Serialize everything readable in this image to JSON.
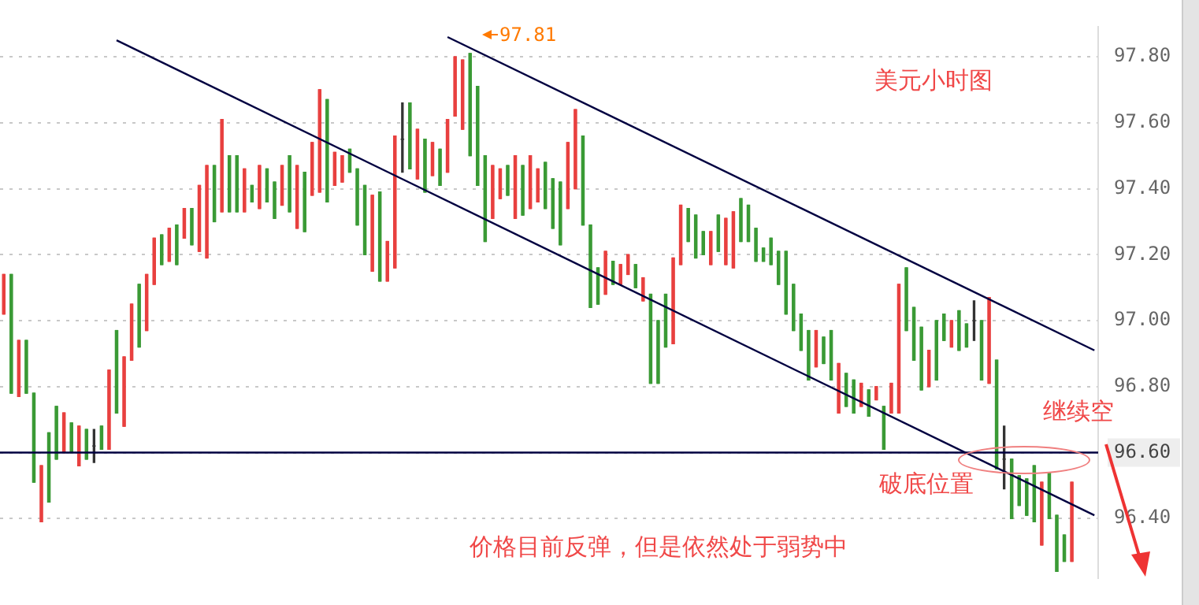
{
  "chart_data": {
    "type": "candlestick",
    "categories": [
      null,
      null,
      null,
      null,
      null,
      null,
      null,
      null,
      null,
      null,
      null,
      null,
      null,
      null,
      null,
      null,
      null,
      null,
      null,
      null,
      null,
      null,
      null,
      null,
      null,
      null,
      null,
      null,
      null,
      null,
      null,
      null,
      null,
      null,
      null,
      null,
      null,
      null,
      null,
      null,
      null,
      null,
      null,
      null,
      null,
      null,
      null,
      null,
      null,
      null,
      null,
      null,
      null,
      null,
      null,
      null,
      null,
      null,
      null,
      null,
      null,
      null,
      null,
      null,
      null,
      null,
      null,
      null,
      null,
      null,
      null,
      null,
      null,
      null,
      null,
      null,
      null,
      null,
      null,
      null,
      null,
      null,
      null,
      null,
      null,
      null,
      null,
      null,
      null,
      null,
      null,
      null,
      null,
      null,
      null,
      null,
      null,
      null,
      null,
      null,
      null,
      null,
      null,
      null,
      null,
      null,
      null,
      null,
      null,
      null,
      null,
      null,
      null,
      null,
      null,
      null,
      null,
      null,
      null,
      null,
      null,
      null,
      null,
      null,
      null,
      null,
      null,
      null,
      null,
      null,
      null,
      null,
      null,
      null,
      null,
      null,
      null,
      null,
      null,
      null,
      null,
      null,
      null,
      null,
      null,
      null
    ],
    "ohlc": [
      [
        97.02,
        97.14,
        97.02,
        97.14
      ],
      [
        97.14,
        97.14,
        96.78,
        96.78
      ],
      [
        96.77,
        96.94,
        96.77,
        96.94
      ],
      [
        96.94,
        96.94,
        96.78,
        96.78
      ],
      [
        96.78,
        96.78,
        96.51,
        96.51
      ],
      [
        96.39,
        96.56,
        96.39,
        96.56
      ],
      [
        96.66,
        96.66,
        96.45,
        96.45
      ],
      [
        96.74,
        96.74,
        96.58,
        96.58
      ],
      [
        96.6,
        96.72,
        96.6,
        96.72
      ],
      [
        96.69,
        96.69,
        96.6,
        96.6
      ],
      [
        96.56,
        96.68,
        96.56,
        96.68
      ],
      [
        96.67,
        96.67,
        96.58,
        96.58
      ],
      [
        96.62,
        96.67,
        96.57,
        96.62
      ],
      [
        96.68,
        96.68,
        96.61,
        96.61
      ],
      [
        96.61,
        96.85,
        96.61,
        96.85
      ],
      [
        96.97,
        96.97,
        96.72,
        96.72
      ],
      [
        96.68,
        96.89,
        96.68,
        96.89
      ],
      [
        96.88,
        97.05,
        96.88,
        97.05
      ],
      [
        97.11,
        97.11,
        96.92,
        96.92
      ],
      [
        96.97,
        97.14,
        96.97,
        97.14
      ],
      [
        97.11,
        97.25,
        97.11,
        97.25
      ],
      [
        97.26,
        97.26,
        97.17,
        97.17
      ],
      [
        97.18,
        97.28,
        97.18,
        97.28
      ],
      [
        97.29,
        97.29,
        97.17,
        97.17
      ],
      [
        97.25,
        97.34,
        97.25,
        97.34
      ],
      [
        97.34,
        97.34,
        97.23,
        97.23
      ],
      [
        97.21,
        97.41,
        97.21,
        97.41
      ],
      [
        97.19,
        97.47,
        97.19,
        97.47
      ],
      [
        97.47,
        97.47,
        97.3,
        97.3
      ],
      [
        97.33,
        97.61,
        97.33,
        97.61
      ],
      [
        97.5,
        97.5,
        97.33,
        97.33
      ],
      [
        97.5,
        97.5,
        97.33,
        97.33
      ],
      [
        97.33,
        97.46,
        97.33,
        97.46
      ],
      [
        97.41,
        97.41,
        97.36,
        97.36
      ],
      [
        97.34,
        97.47,
        97.34,
        97.47
      ],
      [
        97.46,
        97.46,
        97.36,
        97.36
      ],
      [
        97.42,
        97.42,
        97.31,
        97.31
      ],
      [
        97.35,
        97.47,
        97.35,
        97.47
      ],
      [
        97.5,
        97.5,
        97.33,
        97.33
      ],
      [
        97.28,
        97.47,
        97.28,
        97.47
      ],
      [
        97.45,
        97.45,
        97.27,
        97.27
      ],
      [
        97.38,
        97.54,
        97.38,
        97.54
      ],
      [
        97.39,
        97.7,
        97.39,
        97.7
      ],
      [
        97.67,
        97.67,
        97.36,
        97.36
      ],
      [
        97.41,
        97.51,
        97.41,
        97.51
      ],
      [
        97.42,
        97.5,
        97.42,
        97.5
      ],
      [
        97.52,
        97.52,
        97.45,
        97.45
      ],
      [
        97.46,
        97.46,
        97.29,
        97.29
      ],
      [
        97.41,
        97.41,
        97.2,
        97.2
      ],
      [
        97.15,
        97.38,
        97.15,
        97.38
      ],
      [
        97.39,
        97.39,
        97.12,
        97.12
      ],
      [
        97.12,
        97.24,
        97.12,
        97.24
      ],
      [
        97.16,
        97.56,
        97.16,
        97.56
      ],
      [
        97.55,
        97.66,
        97.45,
        97.55
      ],
      [
        97.66,
        97.66,
        97.46,
        97.46
      ],
      [
        97.43,
        97.58,
        97.43,
        97.58
      ],
      [
        97.55,
        97.55,
        97.39,
        97.39
      ],
      [
        97.44,
        97.54,
        97.44,
        97.54
      ],
      [
        97.52,
        97.52,
        97.41,
        97.41
      ],
      [
        97.45,
        97.61,
        97.45,
        97.61
      ],
      [
        97.62,
        97.8,
        97.62,
        97.8
      ],
      [
        97.58,
        97.79,
        97.58,
        97.79
      ],
      [
        97.81,
        97.81,
        97.5,
        97.5
      ],
      [
        97.71,
        97.71,
        97.41,
        97.41
      ],
      [
        97.5,
        97.5,
        97.24,
        97.24
      ],
      [
        97.31,
        97.47,
        97.31,
        97.47
      ],
      [
        97.37,
        97.46,
        97.37,
        97.46
      ],
      [
        97.47,
        97.47,
        97.38,
        97.38
      ],
      [
        97.31,
        97.5,
        97.31,
        97.5
      ],
      [
        97.47,
        97.47,
        97.32,
        97.32
      ],
      [
        97.34,
        97.5,
        97.34,
        97.5
      ],
      [
        97.36,
        97.46,
        97.36,
        97.46
      ],
      [
        97.48,
        97.48,
        97.34,
        97.34
      ],
      [
        97.43,
        97.43,
        97.28,
        97.28
      ],
      [
        97.42,
        97.42,
        97.23,
        97.23
      ],
      [
        97.34,
        97.54,
        97.34,
        97.54
      ],
      [
        97.4,
        97.64,
        97.4,
        97.64
      ],
      [
        97.56,
        97.56,
        97.29,
        97.29
      ],
      [
        97.29,
        97.29,
        97.04,
        97.04
      ],
      [
        97.16,
        97.16,
        97.05,
        97.05
      ],
      [
        97.08,
        97.21,
        97.08,
        97.21
      ],
      [
        97.18,
        97.18,
        97.11,
        97.11
      ],
      [
        97.11,
        97.17,
        97.11,
        97.17
      ],
      [
        97.14,
        97.2,
        97.14,
        97.2
      ],
      [
        97.17,
        97.17,
        97.1,
        97.1
      ],
      [
        97.06,
        97.13,
        97.06,
        97.13
      ],
      [
        97.08,
        97.08,
        96.81,
        96.81
      ],
      [
        97.0,
        97.0,
        96.81,
        96.81
      ],
      [
        97.08,
        97.08,
        96.92,
        96.92
      ],
      [
        96.93,
        97.19,
        96.93,
        97.19
      ],
      [
        97.17,
        97.35,
        97.17,
        97.35
      ],
      [
        97.34,
        97.34,
        97.24,
        97.24
      ],
      [
        97.32,
        97.32,
        97.19,
        97.19
      ],
      [
        97.27,
        97.27,
        97.2,
        97.2
      ],
      [
        97.17,
        97.27,
        97.17,
        97.27
      ],
      [
        97.32,
        97.32,
        97.21,
        97.21
      ],
      [
        97.17,
        97.31,
        97.17,
        97.31
      ],
      [
        97.16,
        97.33,
        97.16,
        97.33
      ],
      [
        97.37,
        97.37,
        97.24,
        97.24
      ],
      [
        97.35,
        97.35,
        97.24,
        97.24
      ],
      [
        97.28,
        97.28,
        97.18,
        97.18
      ],
      [
        97.22,
        97.22,
        97.18,
        97.18
      ],
      [
        97.25,
        97.25,
        97.17,
        97.17
      ],
      [
        97.21,
        97.21,
        97.11,
        97.11
      ],
      [
        97.21,
        97.21,
        97.02,
        97.02
      ],
      [
        97.11,
        97.11,
        96.97,
        96.97
      ],
      [
        97.02,
        97.02,
        96.91,
        96.91
      ],
      [
        96.97,
        96.97,
        96.82,
        96.82
      ],
      [
        96.86,
        96.97,
        96.86,
        96.97
      ],
      [
        96.95,
        96.95,
        96.87,
        96.87
      ],
      [
        96.97,
        96.97,
        96.82,
        96.82
      ],
      [
        96.72,
        96.87,
        96.72,
        96.87
      ],
      [
        96.84,
        96.84,
        96.74,
        96.74
      ],
      [
        96.82,
        96.82,
        96.72,
        96.72
      ],
      [
        96.74,
        96.81,
        96.74,
        96.81
      ],
      [
        96.79,
        96.79,
        96.71,
        96.71
      ],
      [
        96.76,
        96.8,
        96.76,
        96.8
      ],
      [
        96.74,
        96.74,
        96.61,
        96.61
      ],
      [
        96.72,
        96.81,
        96.72,
        96.81
      ],
      [
        96.72,
        97.11,
        96.72,
        97.11
      ],
      [
        97.16,
        97.16,
        96.97,
        96.97
      ],
      [
        97.04,
        97.04,
        96.88,
        96.88
      ],
      [
        96.98,
        96.98,
        96.79,
        96.79
      ],
      [
        96.8,
        96.91,
        96.8,
        96.91
      ],
      [
        97.0,
        97.0,
        96.82,
        96.82
      ],
      [
        97.02,
        97.02,
        96.94,
        96.94
      ],
      [
        96.92,
        97.0,
        96.92,
        97.0
      ],
      [
        97.03,
        97.03,
        96.91,
        96.91
      ],
      [
        96.99,
        96.99,
        96.92,
        96.92
      ],
      [
        97.0,
        97.06,
        96.94,
        97.0
      ],
      [
        97.0,
        97.0,
        96.82,
        96.82
      ],
      [
        96.81,
        97.07,
        96.81,
        97.07
      ],
      [
        96.88,
        96.88,
        96.55,
        96.55
      ],
      [
        96.58,
        96.68,
        96.49,
        96.58
      ],
      [
        96.58,
        96.58,
        96.4,
        96.4
      ],
      [
        96.53,
        96.53,
        96.44,
        96.44
      ],
      [
        96.52,
        96.52,
        96.41,
        96.41
      ],
      [
        96.56,
        96.56,
        96.39,
        96.39
      ],
      [
        96.32,
        96.51,
        96.32,
        96.51
      ],
      [
        96.54,
        96.54,
        96.4,
        96.4
      ],
      [
        96.41,
        96.41,
        96.24,
        96.24
      ],
      [
        96.35,
        96.35,
        96.27,
        96.27
      ],
      [
        96.27,
        96.51,
        96.27,
        96.51
      ],
      null,
      null,
      null
    ],
    "series": [
      {
        "type": "line",
        "color": "#000040",
        "values": [
          null,
          null,
          null,
          null,
          null,
          null,
          null,
          null,
          null,
          null,
          null,
          null,
          null,
          null,
          null,
          97.85,
          null,
          null,
          null,
          null,
          null,
          null,
          null,
          null,
          null,
          null,
          null,
          null,
          null,
          null,
          null,
          null,
          null,
          null,
          null,
          null,
          null,
          null,
          null,
          null,
          null,
          null,
          null,
          null,
          null,
          null,
          null,
          null,
          null,
          null,
          null,
          null,
          null,
          null,
          null,
          null,
          null,
          null,
          null,
          null,
          null,
          null,
          null,
          null,
          null,
          null,
          null,
          null,
          null,
          null,
          null,
          null,
          null,
          null,
          null,
          null,
          null,
          null,
          null,
          null,
          null,
          null,
          null,
          null,
          null,
          null,
          null,
          null,
          null,
          null,
          null,
          null,
          null,
          null,
          null,
          null,
          null,
          null,
          null,
          null,
          null,
          null,
          null,
          null,
          null,
          null,
          null,
          null,
          null,
          null,
          null,
          null,
          null,
          null,
          null,
          null,
          null,
          null,
          null,
          null,
          null,
          null,
          null,
          null,
          null,
          null,
          null,
          null,
          null,
          null,
          null,
          null,
          null,
          null,
          null,
          null,
          null,
          null,
          null,
          null,
          null,
          null,
          null,
          null,
          null,
          96.41
        ]
      },
      {
        "type": "line",
        "color": "#000040",
        "values": [
          null,
          null,
          null,
          null,
          null,
          null,
          null,
          null,
          null,
          null,
          null,
          null,
          null,
          null,
          null,
          null,
          null,
          null,
          null,
          null,
          null,
          null,
          null,
          null,
          null,
          null,
          null,
          null,
          null,
          null,
          null,
          null,
          null,
          null,
          null,
          null,
          null,
          null,
          null,
          null,
          null,
          null,
          null,
          null,
          null,
          null,
          null,
          null,
          null,
          null,
          null,
          null,
          null,
          null,
          null,
          null,
          null,
          null,
          null,
          97.86,
          null,
          null,
          null,
          null,
          null,
          null,
          null,
          null,
          null,
          null,
          null,
          null,
          null,
          null,
          null,
          null,
          null,
          null,
          null,
          null,
          null,
          null,
          null,
          null,
          null,
          null,
          null,
          null,
          null,
          null,
          null,
          null,
          null,
          null,
          null,
          null,
          null,
          null,
          null,
          null,
          null,
          null,
          null,
          null,
          null,
          null,
          null,
          null,
          null,
          null,
          null,
          null,
          null,
          null,
          null,
          null,
          null,
          null,
          null,
          null,
          null,
          null,
          null,
          null,
          null,
          null,
          null,
          null,
          null,
          null,
          null,
          null,
          null,
          null,
          null,
          null,
          null,
          null,
          null,
          null,
          null,
          null,
          null,
          null,
          null,
          96.91
        ]
      }
    ],
    "marker": "none",
    "ylim": [
      96.22,
      97.89
    ],
    "yticks": [
      {
        "value": 96.4,
        "label": "96.40"
      },
      {
        "value": 96.6,
        "label": null
      },
      {
        "value": 96.8,
        "label": "96.80"
      },
      {
        "value": 97.0,
        "label": "97.00"
      },
      {
        "value": 97.2,
        "label": "97.20"
      },
      {
        "value": 97.4,
        "label": "97.40"
      },
      {
        "value": 97.6,
        "label": "97.60"
      },
      {
        "value": 97.8,
        "label": "97.80"
      }
    ],
    "grid": "y",
    "ref_lines": [
      {
        "axis": "y",
        "value": 96.6,
        "label": "96.60",
        "color": "#000040"
      }
    ],
    "annotations": [
      "97.81",
      "美元小时图",
      "继续空",
      "破底位置",
      "价格目前反弹，但是依然处于弱势中"
    ]
  }
}
